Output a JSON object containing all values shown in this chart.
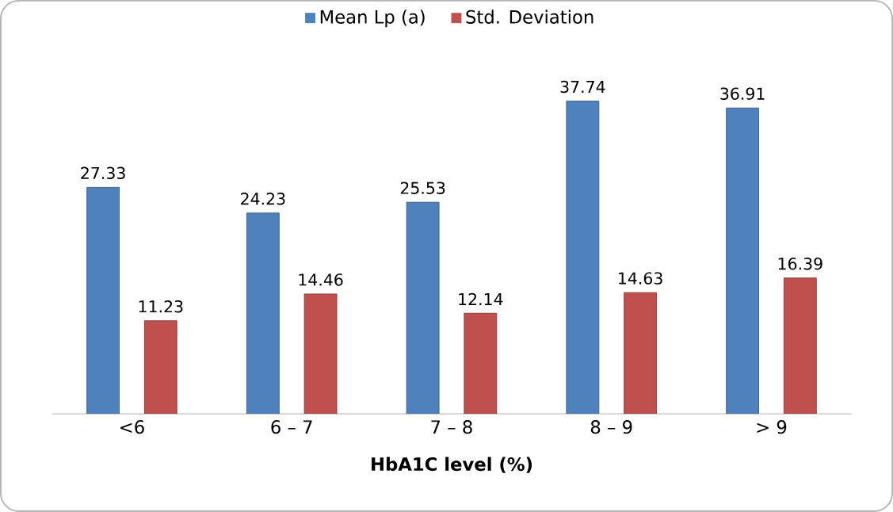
{
  "chart_data": {
    "type": "bar",
    "xlabel": "HbA1C level (%)",
    "categories": [
      "<6",
      "6 – 7",
      "7 – 8",
      "8 – 9",
      "> 9"
    ],
    "series": [
      {
        "name": "Mean Lp (a)",
        "color": "#4f81bd",
        "values": [
          27.33,
          24.23,
          25.53,
          37.74,
          36.91
        ]
      },
      {
        "name": "Std. Deviation",
        "color": "#c0504d",
        "values": [
          11.23,
          14.46,
          12.14,
          14.63,
          16.39
        ]
      }
    ],
    "data_labels": true,
    "legend": "top",
    "grid": false
  }
}
